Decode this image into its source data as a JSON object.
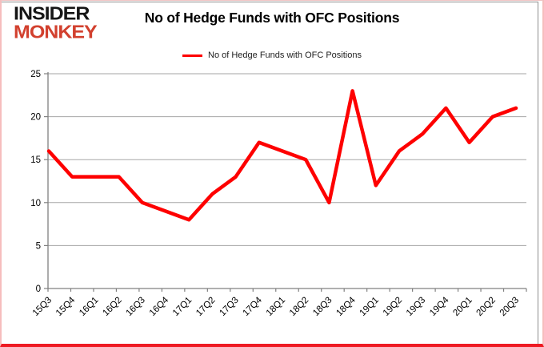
{
  "logo": {
    "top": "INSIDER",
    "bottom": "MONKEY",
    "top_color": "#161616",
    "bottom_color": "#d2402e"
  },
  "header": {
    "title": "No of Hedge Funds with OFC Positions"
  },
  "legend": {
    "label": "No of Hedge Funds with OFC Positions",
    "swatch_color": "#fe0000"
  },
  "chart_data": {
    "type": "line",
    "title": "No of Hedge Funds with OFC Positions",
    "categories": [
      "15Q3",
      "15Q4",
      "16Q1",
      "16Q2",
      "16Q3",
      "16Q4",
      "17Q1",
      "17Q2",
      "17Q3",
      "17Q4",
      "18Q1",
      "18Q2",
      "18Q3",
      "18Q4",
      "19Q1",
      "19Q2",
      "19Q3",
      "19Q4",
      "20Q1",
      "20Q2",
      "20Q3"
    ],
    "values": [
      16,
      13,
      13,
      13,
      10,
      9,
      8,
      11,
      13,
      17,
      16,
      15,
      10,
      23,
      12,
      16,
      18,
      21,
      17,
      20,
      21
    ],
    "xlabel": "",
    "ylabel": "",
    "ylim": [
      0,
      25
    ],
    "yticks": [
      0,
      5,
      10,
      15,
      20,
      25
    ],
    "grid": true,
    "legend_position": "top-center",
    "line_color": "#fe0000",
    "gridline_color": "#a6a6a6",
    "axis_color": "#808080",
    "tick_label_color": "#000000"
  }
}
